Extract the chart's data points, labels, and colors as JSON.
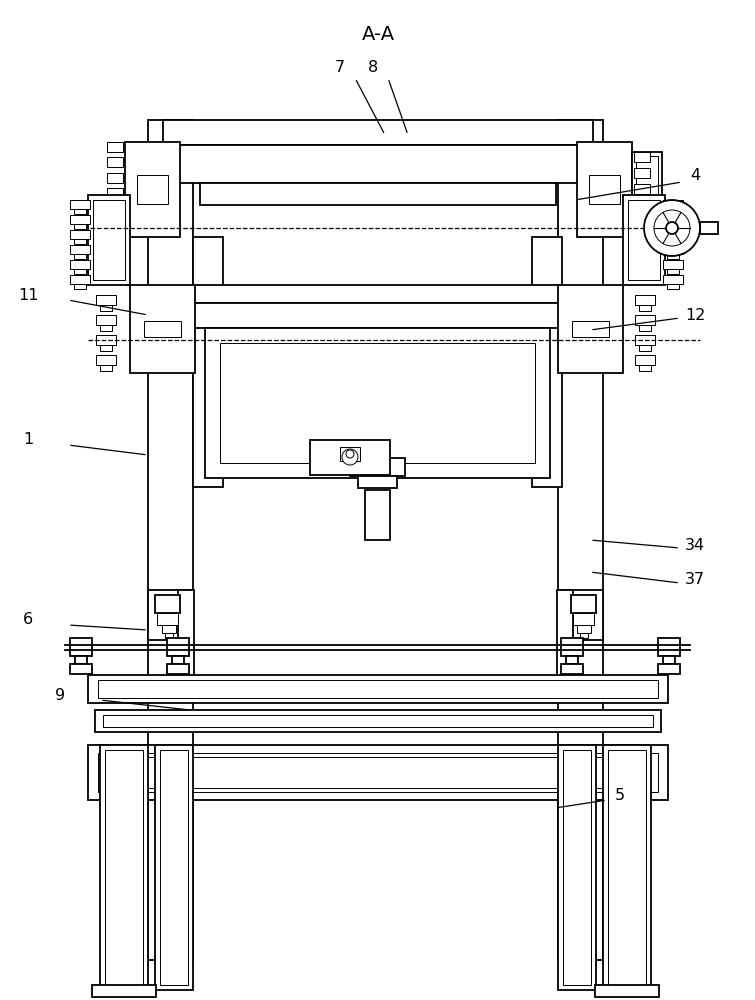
{
  "title": "A-A",
  "bg": "#ffffff",
  "lc": "#000000",
  "labels": [
    [
      "7",
      340,
      68,
      355,
      78,
      385,
      135
    ],
    [
      "8",
      373,
      68,
      388,
      78,
      408,
      135
    ],
    [
      "4",
      695,
      175,
      682,
      182,
      575,
      200
    ],
    [
      "11",
      28,
      295,
      68,
      300,
      148,
      315
    ],
    [
      "12",
      695,
      315,
      680,
      318,
      590,
      330
    ],
    [
      "1",
      28,
      440,
      68,
      445,
      148,
      455
    ],
    [
      "34",
      695,
      545,
      680,
      548,
      590,
      540
    ],
    [
      "37",
      695,
      580,
      680,
      583,
      590,
      572
    ],
    [
      "6",
      28,
      620,
      68,
      625,
      148,
      630
    ],
    [
      "9",
      60,
      695,
      100,
      700,
      190,
      710
    ],
    [
      "5",
      620,
      795,
      607,
      800,
      555,
      808
    ]
  ]
}
